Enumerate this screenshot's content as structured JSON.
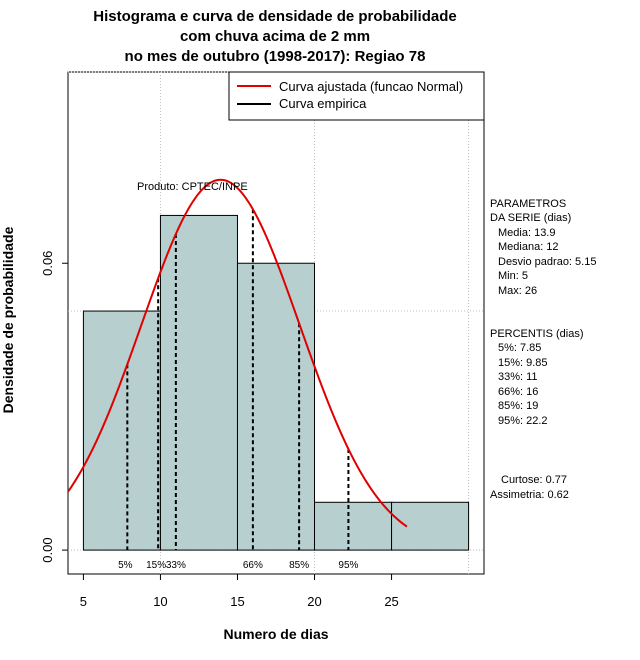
{
  "chart_data": {
    "type": "bar",
    "title_lines": [
      "Histograma e curva de densidade de probabilidade",
      "com chuva acima de 2 mm",
      "no mes de outubro (1998-2017): Regiao 78"
    ],
    "xlabel": "Numero de dias",
    "ylabel": "Densidade de probabilidade",
    "xlim": [
      4,
      31
    ],
    "ylim": [
      -0.005,
      0.1
    ],
    "x_ticks": [
      5,
      10,
      15,
      20,
      25
    ],
    "y_ticks": [
      0.0,
      0.06
    ],
    "y_tick_labels": [
      "0.00",
      "0.06"
    ],
    "grid_x": [
      10,
      20,
      30
    ],
    "grid_y": [
      0.05,
      0.1
    ],
    "histogram": {
      "bins": [
        [
          5,
          10
        ],
        [
          10,
          15
        ],
        [
          15,
          20
        ],
        [
          20,
          25
        ],
        [
          25,
          30
        ]
      ],
      "density": [
        0.05,
        0.07,
        0.06,
        0.01,
        0.01
      ],
      "fill": "#b7cfcf"
    },
    "normal_curve": {
      "name": "Curva ajustada (funcao Normal)",
      "mean": 13.9,
      "sd": 5.15,
      "x_from": 4,
      "x_to": 26,
      "color": "#e00000"
    },
    "empirical_name": "Curva empirica",
    "percentiles": [
      {
        "label": "5%",
        "x": 7.85
      },
      {
        "label": "15%",
        "x": 9.85
      },
      {
        "label": "33%",
        "x": 11
      },
      {
        "label": "66%",
        "x": 16
      },
      {
        "label": "85%",
        "x": 19
      },
      {
        "label": "95%",
        "x": 22.2
      }
    ],
    "product_label": "Produto: CPTEC/INPE",
    "legend_position": "top-right"
  },
  "side_panel": {
    "param_title_1": "PARAMETROS",
    "param_title_2": "DA SERIE (dias)",
    "params": [
      "Media: 13.9",
      "Mediana: 12",
      "Desvio padrao: 5.15",
      "Min: 5",
      "Max: 26"
    ],
    "perc_title": "PERCENTIS (dias)",
    "percs": [
      "5%: 7.85",
      "15%: 9.85",
      "33%: 11",
      "66%: 16",
      "85%: 19",
      "95%: 22.2"
    ],
    "curtose": "Curtose: 0.77",
    "assimetria": "Assimetria: 0.62"
  }
}
